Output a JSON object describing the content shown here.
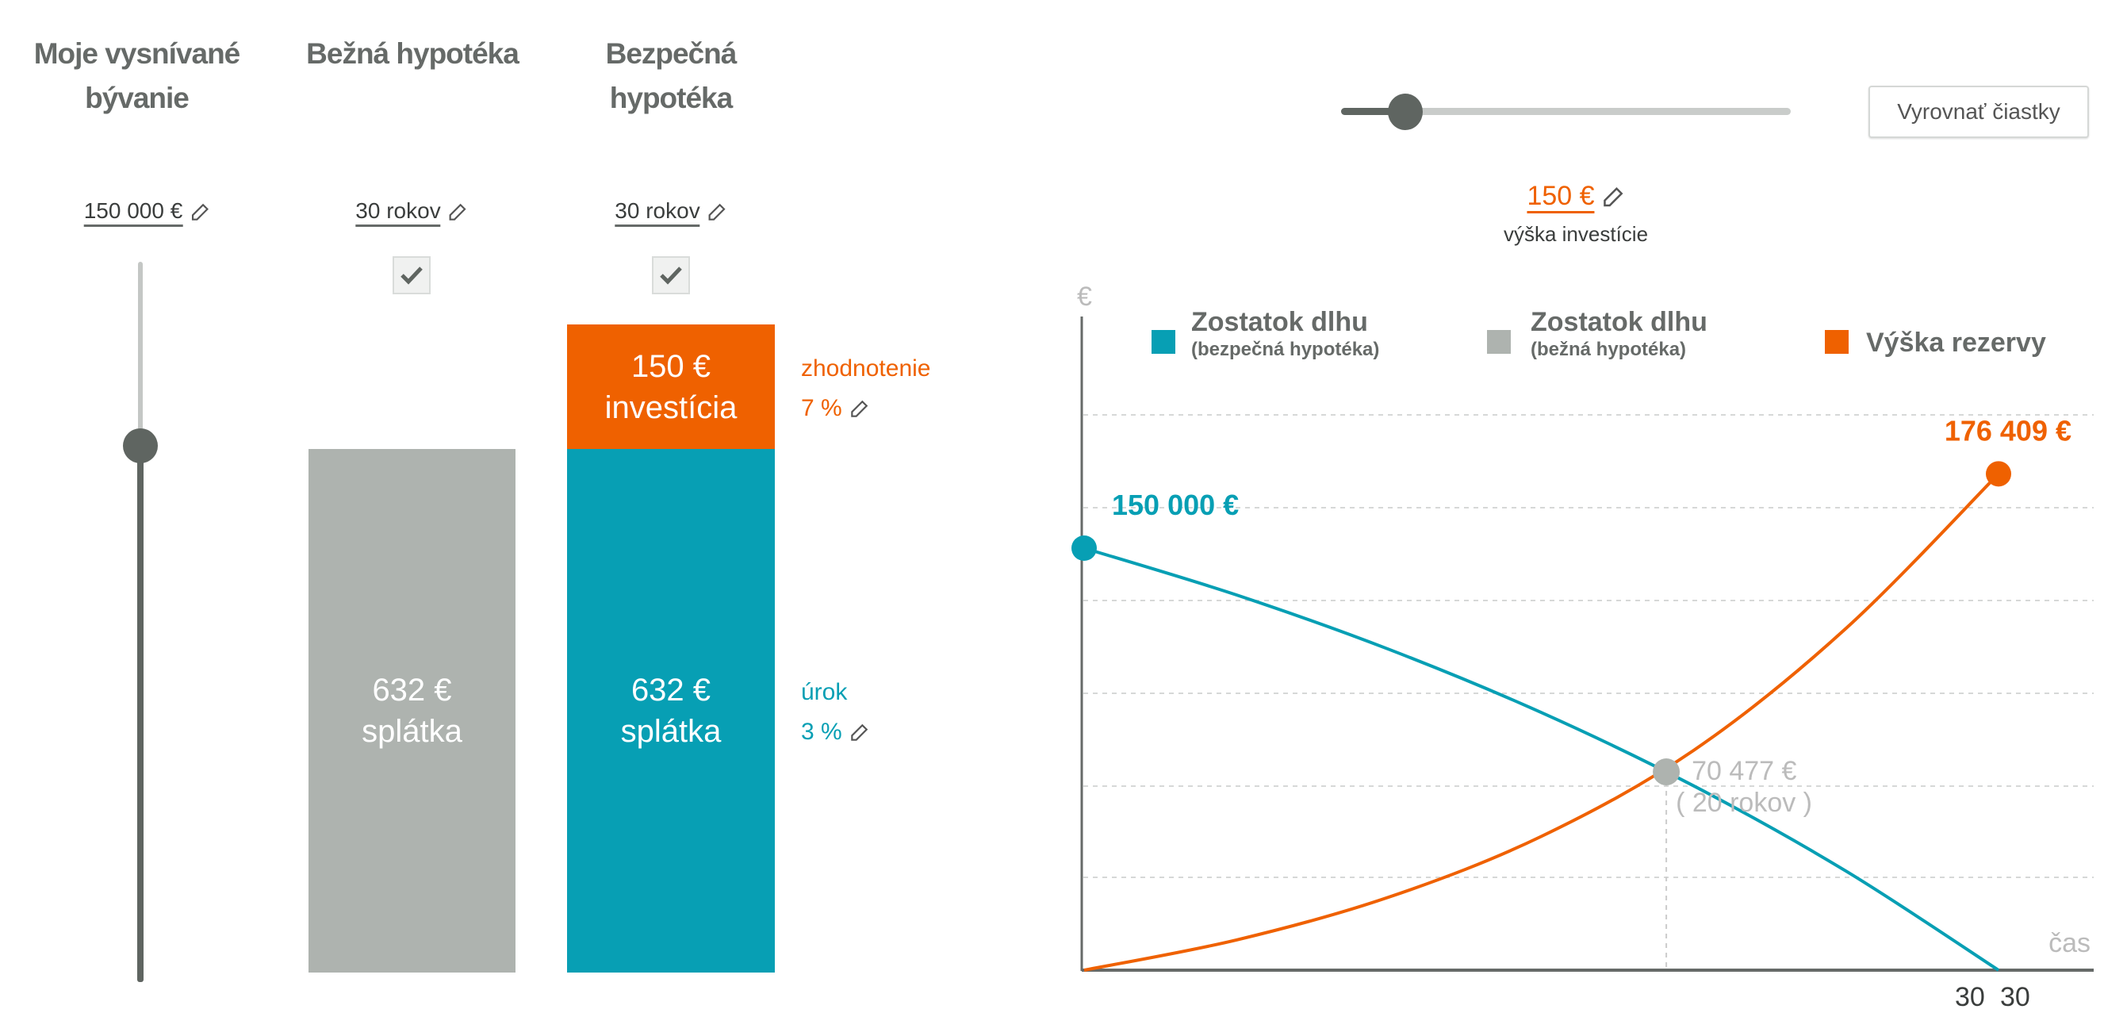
{
  "columns": {
    "housing": {
      "title_line1": "Moje vysnívané",
      "title_line2": "bývanie",
      "value": "150 000 €",
      "slider_level": 0.63
    },
    "regular": {
      "title": "Bežná hypotéka",
      "term": "30 rokov",
      "checked": true,
      "bar_amount": "632 €",
      "bar_label": "splátka"
    },
    "safe": {
      "title_line1": "Bezpečná",
      "title_line2": "hypotéka",
      "term": "30 rokov",
      "checked": true,
      "invest_amount": "150 €",
      "invest_label": "investícia",
      "bar_amount": "632 €",
      "bar_label": "splátka",
      "appreciation_label": "zhodnotenie",
      "appreciation_value": "7 %",
      "interest_label": "úrok",
      "interest_value": "3 %"
    }
  },
  "investment": {
    "slider_level": 0.14,
    "equalize_button": "Vyrovnať čiastky",
    "amount": "150 €",
    "amount_label": "výška investície"
  },
  "colors": {
    "orange": "#ef6100",
    "teal": "#079fb4",
    "gray": "#aeb3af",
    "dark": "#5f6561",
    "text": "#666a68"
  },
  "icons": {
    "edit": "pencil-icon",
    "check": "checkmark-icon"
  },
  "chart_data": {
    "type": "line",
    "ylabel": "€",
    "xlabel": "čas",
    "x_tick_labels": [
      "30",
      "30"
    ],
    "xlim": [
      0,
      30
    ],
    "ylim": [
      0,
      225000
    ],
    "grid": true,
    "legend_placement": "top",
    "legend": [
      {
        "title": "Zostatok dlhu",
        "subtitle": "(bezpečná hypotéka)",
        "color": "#079fb4"
      },
      {
        "title": "Zostatok dlhu",
        "subtitle": "(bežná hypotéka)",
        "color": "#aeb3af"
      },
      {
        "title": "Výška rezervy",
        "subtitle": "",
        "color": "#ef6100"
      }
    ],
    "series": [
      {
        "name": "Zostatok dlhu (bezpečná hypotéka)",
        "color": "#079fb4",
        "x": [
          0,
          5,
          10,
          15,
          20,
          25,
          30
        ],
        "y": [
          150000,
          133359,
          114031,
          91578,
          65496,
          35186,
          0
        ]
      },
      {
        "name": "Výška rezervy",
        "color": "#ef6100",
        "x": [
          0,
          5,
          10,
          15,
          20,
          25,
          30
        ],
        "y": [
          0,
          10740,
          25965,
          47544,
          78140,
          121517,
          176409
        ]
      }
    ],
    "annotations": {
      "start": {
        "x": 0,
        "y": 150000,
        "label": "150 000 €"
      },
      "end": {
        "x": 30,
        "y": 176409,
        "label": "176 409 €"
      },
      "crossing": {
        "x": 19.1,
        "y": 70477,
        "label": "70 477 €",
        "sublabel": "( 20 rokov )"
      }
    }
  }
}
